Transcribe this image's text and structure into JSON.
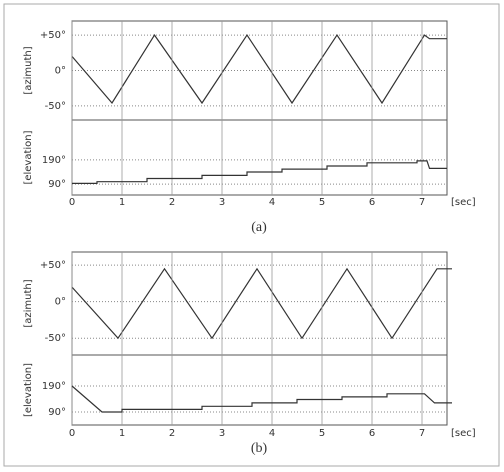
{
  "chart_data": [
    {
      "type": "line",
      "ylabel": "[azimuth]",
      "color": "#333333",
      "x": [
        0,
        0.8,
        1.65,
        2.6,
        3.5,
        4.4,
        5.3,
        6.2,
        7.05,
        7.15,
        7.5
      ],
      "values": [
        20,
        -46,
        50,
        -46,
        50,
        -46,
        50,
        -46,
        50,
        45,
        45
      ],
      "xlim": [
        0,
        7.5
      ],
      "ylim": [
        -70,
        70
      ],
      "yticks": [
        {
          "value": 50,
          "label": "+50°"
        },
        {
          "value": 0,
          "label": "0°"
        },
        {
          "value": -50,
          "label": "-50°"
        }
      ]
    },
    {
      "type": "line",
      "ylabel": "[elevation]",
      "xlabel": "[sec]",
      "caption": "(a)",
      "color": "#333333",
      "x": [
        0,
        0.5,
        0.5,
        1.5,
        1.5,
        2.6,
        2.6,
        3.5,
        3.5,
        4.2,
        4.2,
        5.1,
        5.1,
        5.9,
        5.9,
        6.9,
        6.9,
        7.1,
        7.15,
        7.5
      ],
      "values": [
        93,
        93,
        100,
        100,
        113,
        113,
        126,
        126,
        140,
        140,
        152,
        152,
        165,
        165,
        178,
        178,
        186,
        186,
        155,
        155
      ],
      "xlim": [
        0,
        7.5
      ],
      "ylim": [
        45,
        355
      ],
      "xticks": [
        0,
        1,
        2,
        3,
        4,
        5,
        6,
        7
      ],
      "yticks": [
        {
          "value": 190,
          "label": "190°"
        },
        {
          "value": 90,
          "label": "90°"
        }
      ]
    },
    {
      "type": "line",
      "ylabel": "[azimuth]",
      "color": "#333333",
      "x": [
        0,
        0.92,
        1.85,
        2.8,
        3.7,
        4.6,
        5.5,
        6.4,
        7.3,
        7.6
      ],
      "values": [
        20,
        -50,
        45,
        -50,
        45,
        -50,
        45,
        -50,
        45,
        45
      ],
      "xlim": [
        0,
        7.5
      ],
      "ylim": [
        -73,
        68
      ],
      "yticks": [
        {
          "value": 50,
          "label": "+50°"
        },
        {
          "value": 0,
          "label": "0°"
        },
        {
          "value": -50,
          "label": "-50°"
        }
      ]
    },
    {
      "type": "line",
      "ylabel": "[elevation]",
      "xlabel": "[sec]",
      "caption": "(b)",
      "color": "#333333",
      "x": [
        0,
        0.6,
        1.0,
        1.0,
        2.6,
        2.6,
        3.6,
        3.6,
        4.5,
        4.5,
        5.4,
        5.4,
        6.3,
        6.3,
        7.05,
        7.25,
        7.6
      ],
      "values": [
        190,
        90,
        90,
        100,
        100,
        112,
        112,
        125,
        125,
        138,
        138,
        148,
        148,
        160,
        160,
        125,
        125
      ],
      "xlim": [
        0,
        7.5
      ],
      "ylim": [
        40,
        309
      ],
      "xticks": [
        0,
        1,
        2,
        3,
        4,
        5,
        6,
        7
      ],
      "yticks": [
        {
          "value": 190,
          "label": "190°"
        },
        {
          "value": 90,
          "label": "90°"
        }
      ]
    }
  ]
}
